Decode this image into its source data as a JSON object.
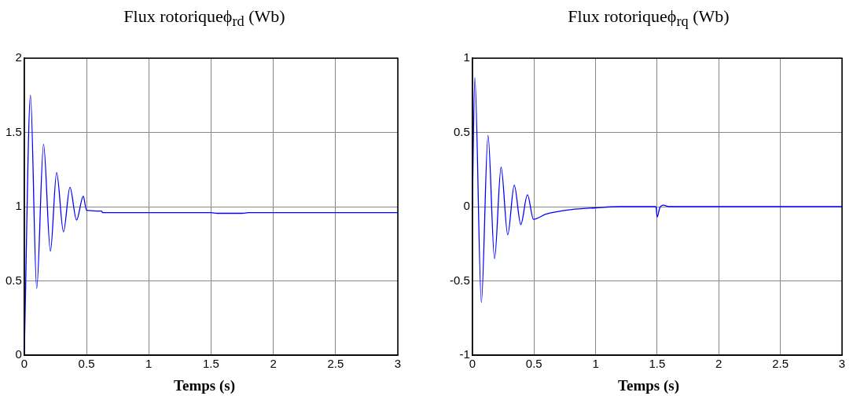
{
  "chart_data": [
    {
      "type": "line",
      "title": "Flux rotoriqueϕ$_{rd}$ (Wb)",
      "xlabel": "Temps (s)",
      "xlim": [
        0,
        3
      ],
      "xticks": [
        0,
        0.5,
        1,
        1.5,
        2,
        2.5,
        3
      ],
      "ylim": [
        0,
        2
      ],
      "yticks": [
        0,
        0.5,
        1,
        1.5,
        2
      ],
      "grid": true,
      "marker": "none",
      "series": [
        {
          "color": "#0000ff",
          "x": [
            0,
            0.05,
            0.1,
            0.155,
            0.21,
            0.26,
            0.315,
            0.367,
            0.42,
            0.474,
            0.5,
            0.62,
            0.63,
            1.5,
            1.55,
            1.75,
            1.8,
            3
          ],
          "values": [
            0,
            1.75,
            0.45,
            1.42,
            0.7,
            1.23,
            0.83,
            1.13,
            0.91,
            1.07,
            0.975,
            0.97,
            0.96,
            0.96,
            0.955,
            0.955,
            0.96,
            0.96
          ]
        }
      ]
    },
    {
      "type": "line",
      "title": "Flux rotoriqueϕ$_{rq}$ (Wb)",
      "xlabel": "Temps (s)",
      "xlim": [
        0,
        3
      ],
      "xticks": [
        0,
        0.5,
        1,
        1.5,
        2,
        2.5,
        3
      ],
      "ylim": [
        -1,
        1
      ],
      "yticks": [
        -1,
        -0.5,
        0,
        0.5,
        1
      ],
      "grid": true,
      "marker": "none",
      "series": [
        {
          "color": "#0000ff",
          "x": [
            0,
            0.02,
            0.073,
            0.127,
            0.18,
            0.233,
            0.287,
            0.34,
            0.393,
            0.447,
            0.496,
            0.6,
            0.8,
            1,
            1.2,
            1.49,
            1.5,
            1.52,
            1.55,
            1.6,
            3
          ],
          "values": [
            0,
            0.87,
            -0.645,
            0.48,
            -0.35,
            0.266,
            -0.19,
            0.145,
            -0.12,
            0.08,
            -0.085,
            -0.05,
            -0.02,
            -0.008,
            0,
            0,
            -0.07,
            -0.01,
            0.01,
            0,
            0
          ]
        }
      ]
    }
  ]
}
